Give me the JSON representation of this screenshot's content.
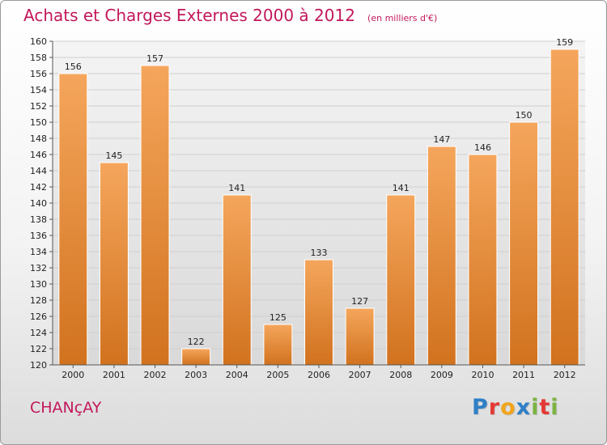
{
  "title": "Achats et Charges Externes 2000 à 2012",
  "subtitle": "(en milliers d'€)",
  "commune": "CHANçAY",
  "logo": {
    "text": "Proxiti",
    "letters": [
      {
        "char": "P",
        "color": "#2e7fc7"
      },
      {
        "char": "r",
        "color": "#e53935"
      },
      {
        "char": "o",
        "color": "#f2a51a"
      },
      {
        "char": "x",
        "color": "#2e7fc7"
      },
      {
        "char": "i",
        "color": "#7cb342"
      },
      {
        "char": "t",
        "color": "#e53935"
      },
      {
        "char": "i",
        "color": "#7cb342"
      }
    ]
  },
  "colors": {
    "bar_light": "#f5a65c",
    "bar_dark": "#d1721e",
    "grid": "#cfcfcf",
    "accent": "#c2185b"
  },
  "chart_data": {
    "type": "bar",
    "categories": [
      "2000",
      "2001",
      "2002",
      "2003",
      "2004",
      "2005",
      "2006",
      "2007",
      "2008",
      "2009",
      "2010",
      "2011",
      "2012"
    ],
    "values": [
      156,
      145,
      157,
      122,
      141,
      125,
      133,
      127,
      141,
      147,
      146,
      150,
      159
    ],
    "ylim": [
      120,
      160
    ],
    "yticks": [
      120,
      122,
      124,
      126,
      128,
      130,
      132,
      134,
      136,
      138,
      140,
      142,
      144,
      146,
      148,
      150,
      152,
      154,
      156,
      158,
      160
    ],
    "grid": true
  }
}
